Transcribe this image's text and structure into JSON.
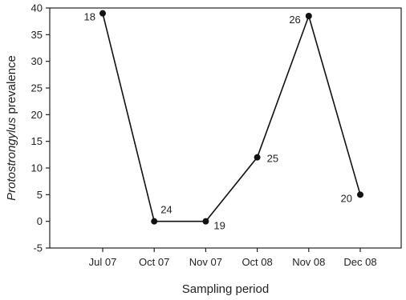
{
  "chart_data": {
    "type": "line",
    "categories": [
      "Jul 07",
      "Oct 07",
      "Nov 07",
      "Oct 08",
      "Nov 08",
      "Dec 08"
    ],
    "series": [
      {
        "values": [
          39,
          0,
          0,
          12,
          38.5,
          5
        ]
      }
    ],
    "point_labels": [
      "18",
      "24",
      "19",
      "25",
      "26",
      "20"
    ],
    "xlabel": "Sampling period",
    "ylabel_italic": "Protostrongylus",
    "ylabel_rest": " prevalence",
    "ylim": [
      -5,
      40
    ],
    "yticks": [
      -5,
      0,
      5,
      10,
      15,
      20,
      25,
      30,
      35,
      40
    ],
    "grid": false,
    "line_color": "#111111",
    "marker_color": "#111111"
  }
}
